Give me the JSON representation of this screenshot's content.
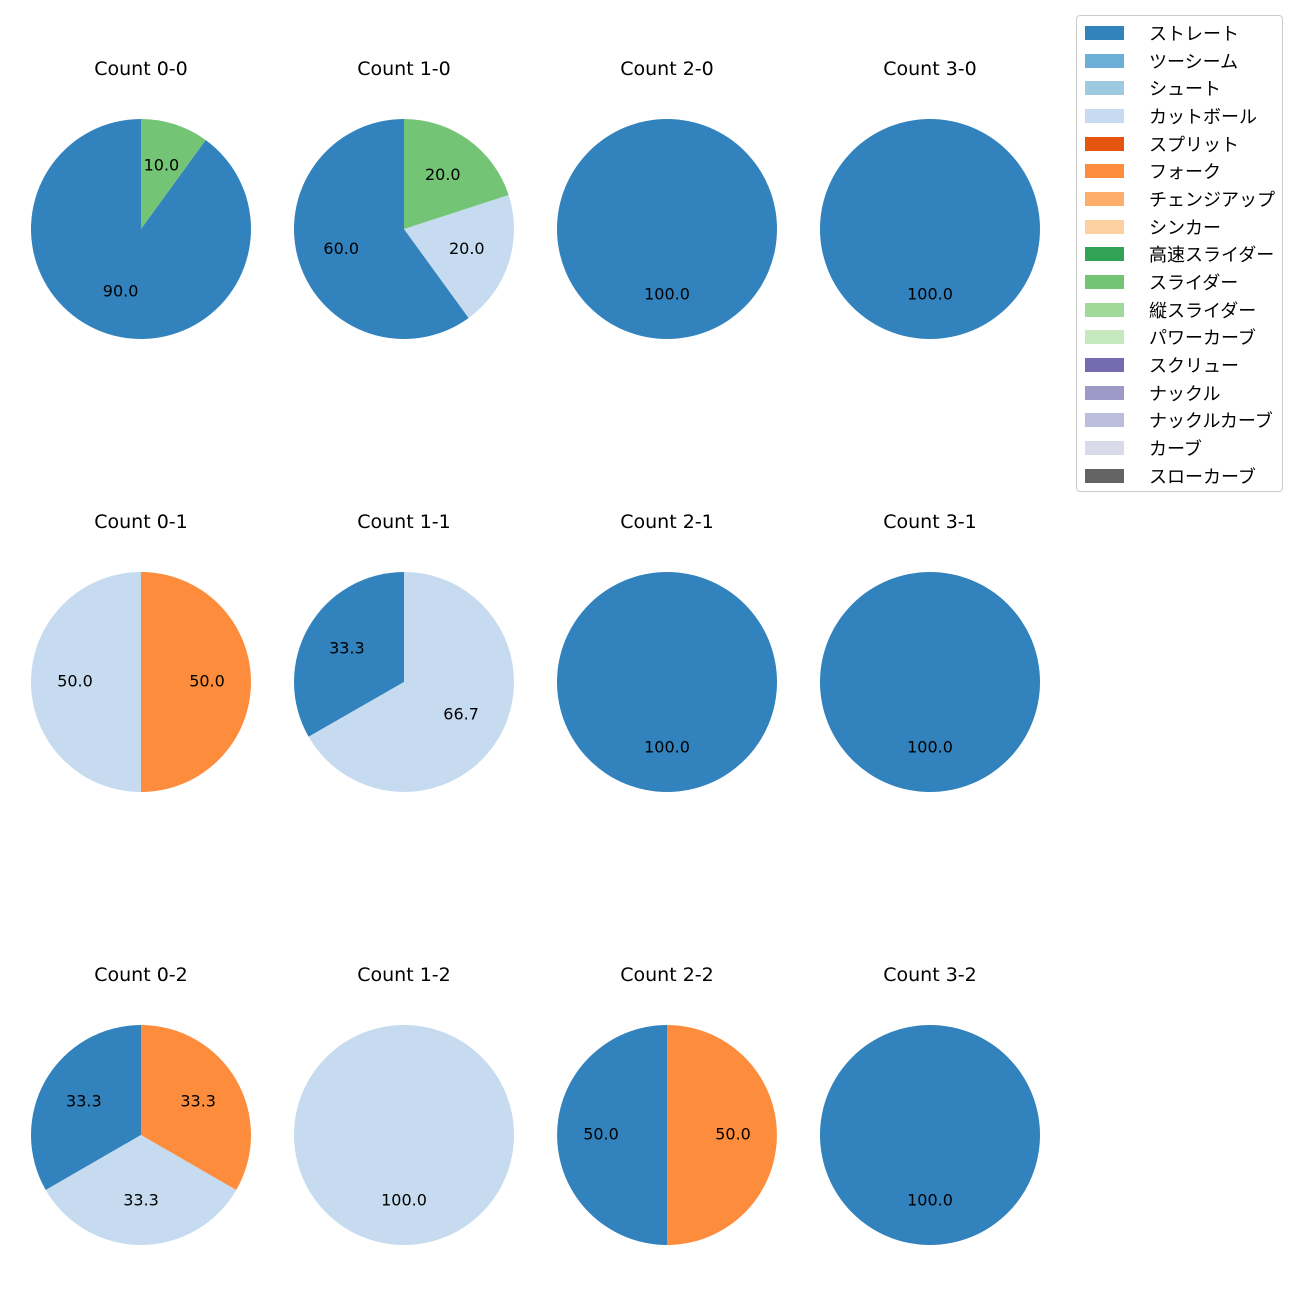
{
  "chart_data": {
    "type": "pie",
    "legend_location": "top-right",
    "categories": [
      "ストレート",
      "ツーシーム",
      "シュート",
      "カットボール",
      "スプリット",
      "フォーク",
      "チェンジアップ",
      "シンカー",
      "高速スライダー",
      "スライダー",
      "縦スライダー",
      "パワーカーブ",
      "スクリュー",
      "ナックル",
      "ナックルカーブ",
      "カーブ",
      "スローカーブ"
    ],
    "colors": [
      "#3182bd",
      "#6baed6",
      "#9ecae1",
      "#c6dbef",
      "#e6550d",
      "#fd8d3c",
      "#fdae6b",
      "#fdd0a2",
      "#31a354",
      "#74c476",
      "#a1d99b",
      "#c7e9c0",
      "#756bb1",
      "#9e9ac8",
      "#bcbddc",
      "#dadaeb",
      "#636363"
    ],
    "panels": [
      {
        "title": "Count 0-0",
        "slices": [
          {
            "category": "ストレート",
            "value": 90.0,
            "label": "90.0"
          },
          {
            "category": "スライダー",
            "value": 10.0,
            "label": "10.0"
          }
        ]
      },
      {
        "title": "Count 1-0",
        "slices": [
          {
            "category": "ストレート",
            "value": 60.0,
            "label": "60.0"
          },
          {
            "category": "カットボール",
            "value": 20.0,
            "label": "20.0"
          },
          {
            "category": "スライダー",
            "value": 20.0,
            "label": "20.0"
          }
        ]
      },
      {
        "title": "Count 2-0",
        "slices": [
          {
            "category": "ストレート",
            "value": 100.0,
            "label": "100.0"
          }
        ]
      },
      {
        "title": "Count 3-0",
        "slices": [
          {
            "category": "ストレート",
            "value": 100.0,
            "label": "100.0"
          }
        ]
      },
      {
        "title": "Count 0-1",
        "slices": [
          {
            "category": "カットボール",
            "value": 50.0,
            "label": "50.0"
          },
          {
            "category": "フォーク",
            "value": 50.0,
            "label": "50.0"
          }
        ]
      },
      {
        "title": "Count 1-1",
        "slices": [
          {
            "category": "ストレート",
            "value": 33.3,
            "label": "33.3"
          },
          {
            "category": "カットボール",
            "value": 66.7,
            "label": "66.7"
          }
        ]
      },
      {
        "title": "Count 2-1",
        "slices": [
          {
            "category": "ストレート",
            "value": 100.0,
            "label": "100.0"
          }
        ]
      },
      {
        "title": "Count 3-1",
        "slices": [
          {
            "category": "ストレート",
            "value": 100.0,
            "label": "100.0"
          }
        ]
      },
      {
        "title": "Count 0-2",
        "slices": [
          {
            "category": "ストレート",
            "value": 33.3,
            "label": "33.3"
          },
          {
            "category": "カットボール",
            "value": 33.3,
            "label": "33.3"
          },
          {
            "category": "フォーク",
            "value": 33.3,
            "label": "33.3"
          }
        ]
      },
      {
        "title": "Count 1-2",
        "slices": [
          {
            "category": "カットボール",
            "value": 100.0,
            "label": "100.0"
          }
        ]
      },
      {
        "title": "Count 2-2",
        "slices": [
          {
            "category": "ストレート",
            "value": 50.0,
            "label": "50.0"
          },
          {
            "category": "フォーク",
            "value": 50.0,
            "label": "50.0"
          }
        ]
      },
      {
        "title": "Count 3-2",
        "slices": [
          {
            "category": "ストレート",
            "value": 100.0,
            "label": "100.0"
          }
        ]
      }
    ]
  }
}
